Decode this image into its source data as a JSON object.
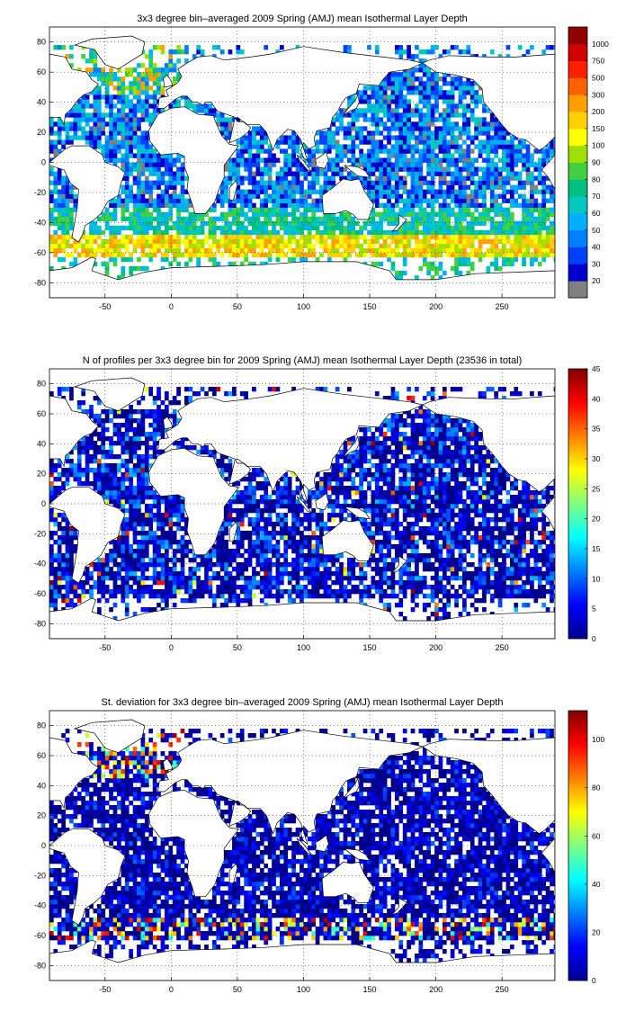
{
  "figure": {
    "panels": [
      {
        "id": "mean",
        "title": "3x3 degree bin–averaged 2009 Spring (AMJ) mean Isothermal Layer Depth",
        "colorbar": {
          "type": "discrete",
          "labels": [
            "20",
            "30",
            "40",
            "50",
            "60",
            "70",
            "80",
            "90",
            "100",
            "150",
            "200",
            "300",
            "500",
            "750",
            "1000"
          ],
          "colors": [
            "#808080",
            "#0000cc",
            "#0040ff",
            "#0080ff",
            "#00b0ff",
            "#00c8c0",
            "#00c080",
            "#40d040",
            "#a0e000",
            "#ffff00",
            "#ffd000",
            "#ffa000",
            "#ff6000",
            "#ff2000",
            "#d00000",
            "#900000"
          ]
        }
      },
      {
        "id": "count",
        "title": "N of profiles per 3x3 degree bin for 2009 Spring (AMJ) mean Isothermal Layer Depth  (23536 in total)",
        "colorbar": {
          "type": "continuous",
          "ticks": [
            0,
            5,
            10,
            15,
            20,
            25,
            30,
            35,
            40,
            45
          ],
          "min": 0,
          "max": 45
        }
      },
      {
        "id": "stdev",
        "title": "St. deviation for 3x3 degree bin–averaged 2009 Spring (AMJ) mean Isothermal Layer Depth",
        "colorbar": {
          "type": "continuous",
          "ticks": [
            0,
            20,
            40,
            60,
            80,
            100
          ],
          "min": 0,
          "max": 112
        }
      }
    ],
    "axes": {
      "xlim": [
        -92,
        290
      ],
      "ylim": [
        -90,
        90
      ],
      "xticks": [
        -50,
        0,
        50,
        100,
        150,
        200,
        250
      ],
      "yticks": [
        -80,
        -60,
        -40,
        -20,
        0,
        20,
        40,
        60,
        80
      ],
      "grid": "dotted"
    }
  }
}
